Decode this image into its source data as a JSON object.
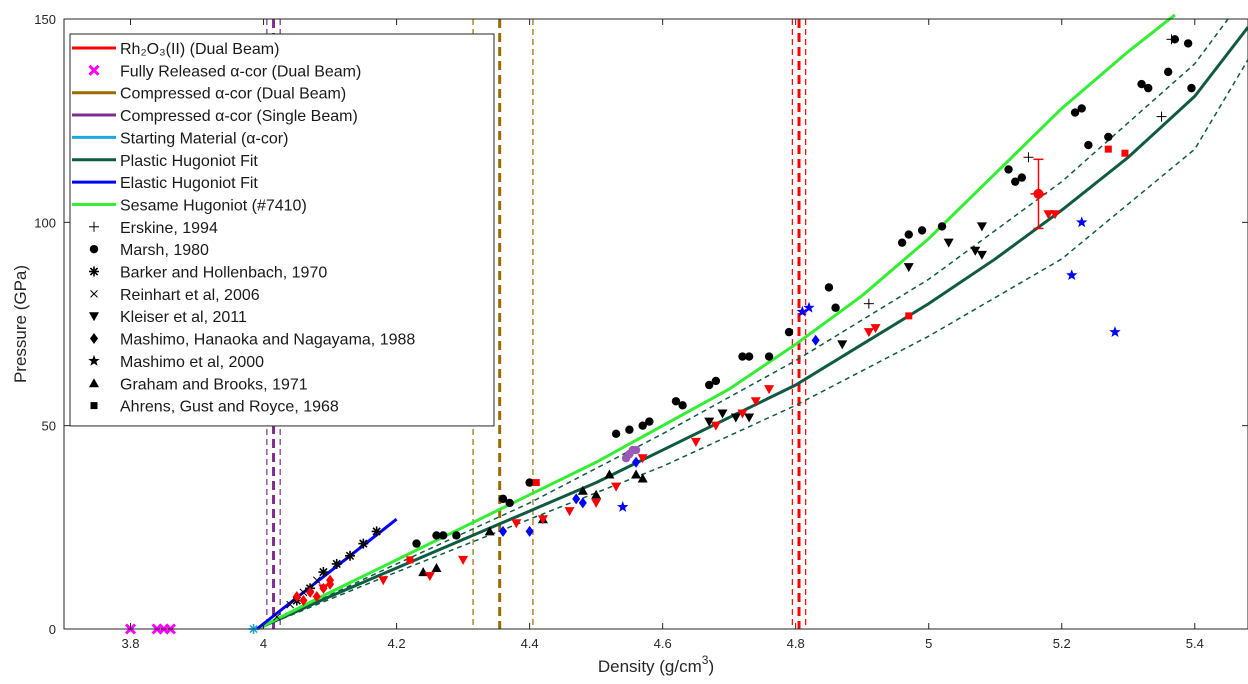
{
  "chart_data": {
    "type": "scatter",
    "xlabel": "Density (g/cm",
    "xlabel_sup": "3",
    "xlabel_end": ")",
    "ylabel": "Pressure (GPa)",
    "xlim": [
      3.7,
      5.48
    ],
    "ylim": [
      0,
      150
    ],
    "x_ticks": [
      3.8,
      4,
      4.2,
      4.4,
      4.6,
      4.8,
      5,
      5.2,
      5.4
    ],
    "x_tick_labels": [
      "3.8",
      "4",
      "4.2",
      "4.4",
      "4.6",
      "4.8",
      "5",
      "5.2",
      "5.4"
    ],
    "y_ticks": [
      0,
      50,
      100,
      150
    ],
    "y_tick_labels": [
      "0",
      "50",
      "100",
      "150"
    ],
    "legend_position": "top-left",
    "colors": {
      "rh2o3": "#ff0000",
      "released": "#ff00ff",
      "compressed_dual": "#9a6a00",
      "compressed_single": "#7e2f8e",
      "starting": "#1ea7e1",
      "plastic": "#0f5a43",
      "elastic": "#0000ff",
      "sesame": "#33ee33"
    },
    "legend": [
      {
        "label": "Rh₂O₃(II) (Dual Beam)",
        "kind": "line",
        "color": "#ff0000"
      },
      {
        "label": "Fully Released α-cor (Dual Beam)",
        "kind": "x",
        "color": "#ff00ff"
      },
      {
        "label": "Compressed α-cor (Dual Beam)",
        "kind": "line",
        "color": "#9a6a00"
      },
      {
        "label": "Compressed α-cor (Single Beam)",
        "kind": "line",
        "color": "#7e2f8e"
      },
      {
        "label": "Starting Material (α-cor)",
        "kind": "line",
        "color": "#1ea7e1"
      },
      {
        "label": "Plastic Hugoniot Fit",
        "kind": "line",
        "color": "#0f5a43"
      },
      {
        "label": "Elastic Hugoniot Fit",
        "kind": "line",
        "color": "#0000ff"
      },
      {
        "label": "Sesame Hugoniot (#7410)",
        "kind": "line",
        "color": "#33ee33"
      },
      {
        "label": "Erskine, 1994",
        "kind": "plus",
        "color": "#000000"
      },
      {
        "label": "Marsh, 1980",
        "kind": "circle",
        "color": "#000000"
      },
      {
        "label": "Barker and Hollenbach, 1970",
        "kind": "asterisk",
        "color": "#000000"
      },
      {
        "label": "Reinhart et al, 2006",
        "kind": "cross",
        "color": "#000000"
      },
      {
        "label": "Kleiser et al,  2011",
        "kind": "tri-down",
        "color": "#000000"
      },
      {
        "label": "Mashimo, Hanaoka and Nagayama, 1988",
        "kind": "diamond",
        "color": "#000000"
      },
      {
        "label": "Mashimo et al, 2000",
        "kind": "star",
        "color": "#000000"
      },
      {
        "label": "Graham and Brooks, 1971",
        "kind": "tri-up",
        "color": "#000000"
      },
      {
        "label": "Ahrens, Gust and Royce, 1968",
        "kind": "square",
        "color": "#000000"
      }
    ],
    "curves": {
      "sesame": {
        "x": [
          3.99,
          4.1,
          4.2,
          4.3,
          4.4,
          4.5,
          4.6,
          4.7,
          4.8,
          4.9,
          5.0,
          5.1,
          5.2,
          5.3,
          5.37
        ],
        "y": [
          0,
          9,
          17,
          25,
          33,
          41,
          50,
          59,
          70,
          82,
          96,
          112,
          128,
          142,
          151
        ]
      },
      "plastic": {
        "x": [
          3.99,
          4.1,
          4.2,
          4.3,
          4.4,
          4.5,
          4.6,
          4.7,
          4.8,
          4.9,
          5.0,
          5.1,
          5.2,
          5.3,
          5.4,
          5.48
        ],
        "y": [
          0,
          8,
          15,
          22,
          29,
          36,
          44,
          52,
          60,
          70,
          80,
          91,
          103,
          116,
          131,
          148
        ]
      },
      "plastic_upper": {
        "x": [
          3.99,
          4.2,
          4.4,
          4.6,
          4.8,
          5.0,
          5.2,
          5.4,
          5.45
        ],
        "y": [
          0,
          16,
          31,
          48,
          66,
          86,
          110,
          139,
          150
        ]
      },
      "plastic_lower": {
        "x": [
          3.99,
          4.2,
          4.4,
          4.6,
          4.8,
          5.0,
          5.2,
          5.4,
          5.48
        ],
        "y": [
          0,
          14,
          27,
          40,
          55,
          72,
          91,
          118,
          140
        ]
      },
      "elastic": {
        "x": [
          3.99,
          4.2
        ],
        "y": [
          0,
          27
        ]
      }
    },
    "vertical_lines": [
      {
        "x": 4.015,
        "color": "#7e2f8e",
        "style": "dashed-bold"
      },
      {
        "x": 4.005,
        "color": "#7e2f8e",
        "style": "dashed-thin"
      },
      {
        "x": 4.025,
        "color": "#7e2f8e",
        "style": "dashed-thin"
      },
      {
        "x": 4.355,
        "color": "#9a6a00",
        "style": "dashed-bold"
      },
      {
        "x": 4.315,
        "color": "#9a6a00",
        "style": "dashed-thin"
      },
      {
        "x": 4.405,
        "color": "#9a6a00",
        "style": "dashed-thin"
      },
      {
        "x": 4.805,
        "color": "#ff0000",
        "style": "dashed-bold"
      },
      {
        "x": 4.795,
        "color": "#ff0000",
        "style": "dashed-thin"
      },
      {
        "x": 4.815,
        "color": "#ff0000",
        "style": "dashed-thin"
      }
    ],
    "rh2o3_point": {
      "x": 5.165,
      "y": 107,
      "yerr": 8.5,
      "xerr": 0.012
    },
    "series": [
      {
        "name": "Fully Released α-cor (Dual Beam)",
        "marker": "x",
        "color": "#ff00ff",
        "x": [
          3.8,
          3.84,
          3.85,
          3.86
        ],
        "y": [
          0,
          0,
          0,
          0
        ]
      },
      {
        "name": "Starting Material (α-cor)",
        "marker": "asterisk",
        "color": "#1ea7e1",
        "x": [
          3.985
        ],
        "y": [
          0
        ]
      },
      {
        "name": "Erskine, 1994",
        "marker": "plus",
        "color": "#000000",
        "x": [
          4.91,
          5.15,
          5.35,
          5.365
        ],
        "y": [
          80,
          116,
          126,
          145
        ]
      },
      {
        "name": "Marsh, 1980",
        "marker": "circle",
        "color": "#000000",
        "x": [
          4.23,
          4.26,
          4.27,
          4.29,
          4.36,
          4.37,
          4.4,
          4.53,
          4.55,
          4.57,
          4.58,
          4.62,
          4.63,
          4.67,
          4.68,
          4.72,
          4.73,
          4.76,
          4.79,
          4.85,
          4.86,
          4.96,
          4.97,
          4.99,
          5.02,
          5.12,
          5.13,
          5.14,
          5.22,
          5.23,
          5.24,
          5.27,
          5.32,
          5.33,
          5.36,
          5.37,
          5.39,
          5.395
        ],
        "y": [
          21,
          23,
          23,
          23,
          32,
          31,
          36,
          48,
          49,
          50,
          51,
          56,
          55,
          60,
          61,
          67,
          67,
          67,
          73,
          84,
          79,
          95,
          97,
          98,
          99,
          113,
          110,
          111,
          127,
          128,
          119,
          121,
          134,
          133,
          137,
          145,
          144,
          133
        ]
      },
      {
        "name": "Barker and Hollenbach, 1970",
        "marker": "asterisk",
        "color": "#000000",
        "x": [
          4.05,
          4.07,
          4.09,
          4.11,
          4.13,
          4.15,
          4.17
        ],
        "y": [
          7,
          10,
          14,
          16,
          18,
          21,
          24
        ]
      },
      {
        "name": "Reinhart et al, 2006",
        "marker": "cross",
        "color": "#000000",
        "x": [
          4.02,
          4.04,
          4.06,
          4.08
        ],
        "y": [
          3,
          6,
          9,
          12
        ]
      },
      {
        "name": "Kleiser et al,  2011",
        "marker": "tri-down",
        "color": "#000000",
        "x": [
          4.67,
          4.69,
          4.71,
          4.73,
          4.87,
          4.97,
          5.03,
          5.07,
          5.08,
          5.08
        ],
        "y": [
          51,
          53,
          52,
          52,
          70,
          89,
          95,
          93,
          99,
          92
        ]
      },
      {
        "name": "Mashimo, Hanaoka and Nagayama, 1988",
        "marker": "diamond",
        "color": "#0000ff",
        "x": [
          4.36,
          4.4,
          4.47,
          4.48,
          4.56,
          4.83
        ],
        "y": [
          24,
          24,
          32,
          31,
          41,
          71
        ]
      },
      {
        "name": "Mashimo et al, 2000",
        "marker": "star",
        "color": "#0000ff",
        "x": [
          4.54,
          4.81,
          4.82,
          5.215,
          5.23,
          5.28
        ],
        "y": [
          30,
          78,
          79,
          87,
          100,
          73
        ]
      },
      {
        "name": "Graham and Brooks, 1971",
        "marker": "tri-up",
        "color": "#000000",
        "x": [
          4.24,
          4.26,
          4.34,
          4.42,
          4.48,
          4.5,
          4.52,
          4.56,
          4.57
        ],
        "y": [
          14,
          15,
          24,
          27,
          34,
          33,
          38,
          38,
          37
        ]
      },
      {
        "name": "Ahrens, Gust and Royce, 1968",
        "marker": "square",
        "color": "#ff0000",
        "x": [
          4.22,
          4.41,
          4.97,
          5.27,
          5.295
        ],
        "y": [
          17,
          36,
          77,
          118,
          117
        ]
      },
      {
        "name": "Rh₂O₃(II) red points",
        "marker": "tri-down",
        "color": "#ff0000",
        "x": [
          4.09,
          4.18,
          4.25,
          4.3,
          4.38,
          4.42,
          4.46,
          4.5,
          4.53,
          4.57,
          4.65,
          4.68,
          4.72,
          4.74,
          4.76,
          4.91,
          4.92,
          5.18,
          5.19
        ],
        "y": [
          10,
          12,
          13,
          17,
          26,
          27,
          29,
          31,
          35,
          42,
          46,
          50,
          53,
          56,
          59,
          73,
          74,
          102,
          102
        ]
      },
      {
        "name": "Elastic red markers",
        "marker": "diamond",
        "color": "#ff0000",
        "x": [
          4.05,
          4.06,
          4.07,
          4.08,
          4.09,
          4.1,
          4.1
        ],
        "y": [
          8,
          7,
          9,
          8,
          10,
          11,
          12
        ]
      },
      {
        "name": "Compressed single beam",
        "marker": "circle",
        "color": "#9b59b6",
        "x": [
          4.545,
          4.55,
          4.555,
          4.56
        ],
        "y": [
          42,
          43,
          44,
          44
        ]
      }
    ]
  }
}
